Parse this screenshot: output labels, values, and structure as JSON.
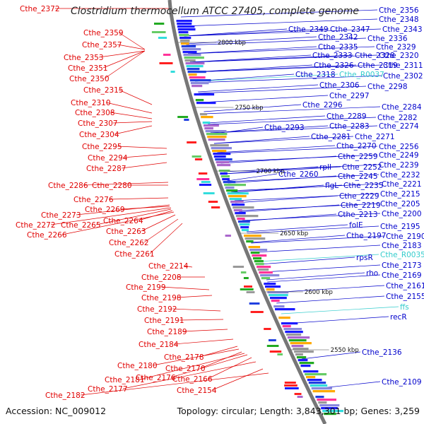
{
  "title": "Clostridium thermocellum ATCC 27405, complete genome",
  "footer": {
    "accession": "Accession: NC_009012",
    "topology": "Topology: circular; Length: 3,843,301 bp; Genes: 3,259"
  },
  "colors": {
    "reverse_label": "#e00000",
    "forward_label": "#0000cc",
    "rna_label": "#33cccc",
    "backbone": "#777777"
  },
  "kbp_marks": [
    "2800 kbp",
    "2750 kbp",
    "2700 kbp",
    "2650 kbp",
    "2600 kbp",
    "2550 kbp"
  ],
  "left_labels": [
    "Cthe_2372",
    "Cthe_2359",
    "Cthe_2357",
    "Cthe_2353",
    "Cthe_2351",
    "Cthe_2350",
    "Cthe_2315",
    "Cthe_2310",
    "Cthe_2308",
    "Cthe_2307",
    "Cthe_2304",
    "Cthe_2295",
    "Cthe_2294",
    "Cthe_2287",
    "Cthe_2286",
    "Cthe_2280",
    "Cthe_2276",
    "Cthe_2273",
    "Cthe_2269",
    "Cthe_2272",
    "Cthe_2265",
    "Cthe_2264",
    "Cthe_2266",
    "Cthe_2263",
    "Cthe_2262",
    "Cthe_2261",
    "Cthe_2214",
    "Cthe_2208",
    "Cthe_2199",
    "Cthe_2198",
    "Cthe_2192",
    "Cthe_2191",
    "Cthe_2189",
    "Cthe_2184",
    "Cthe_2178",
    "Cthe_2180",
    "Cthe_2170",
    "Cthe_2181",
    "Cthe_2176",
    "Cthe_2166",
    "Cthe_2177",
    "Cthe_2154",
    "Cthe_2182"
  ],
  "right_labels": [
    "Cthe_2356",
    "Cthe_2348",
    "Cthe_2349",
    "Cthe_2347",
    "Cthe_2343",
    "Cthe_2342",
    "Cthe_2336",
    "Cthe_2335",
    "Cthe_2329",
    "Cthe_2333",
    "Cthe_2328",
    "Cthe_2320",
    "Cthe_2326",
    "Cthe_2319",
    "Cthe_2311",
    "Cthe_2318",
    "Cthe_R0037",
    "Cthe_2302",
    "Cthe_2306",
    "Cthe_2298",
    "Cthe_2297",
    "Cthe_2296",
    "Cthe_2284",
    "Cthe_2289",
    "Cthe_2282",
    "Cthe_2293",
    "Cthe_2283",
    "Cthe_2274",
    "Cthe_2281",
    "Cthe_2271",
    "Cthe_2270",
    "Cthe_2256",
    "Cthe_2259",
    "Cthe_2249",
    "rplI",
    "Cthe_2252",
    "Cthe_2239",
    "Cthe_2260",
    "Cthe_2245",
    "Cthe_2232",
    "flgL",
    "Cthe_2235",
    "Cthe_2221",
    "Cthe_2229",
    "Cthe_2215",
    "Cthe_2219",
    "Cthe_2205",
    "Cthe_2213",
    "Cthe_2200",
    "folE",
    "Cthe_2195",
    "Cthe_2197",
    "Cthe_2190",
    "Cthe_2183",
    "rpsR",
    "Cthe_R0035",
    "Cthe_2173",
    "rho",
    "Cthe_2169",
    "Cthe_2161",
    "Cthe_2155",
    "ffs",
    "recR",
    "Cthe_2136",
    "Cthe_2109"
  ]
}
